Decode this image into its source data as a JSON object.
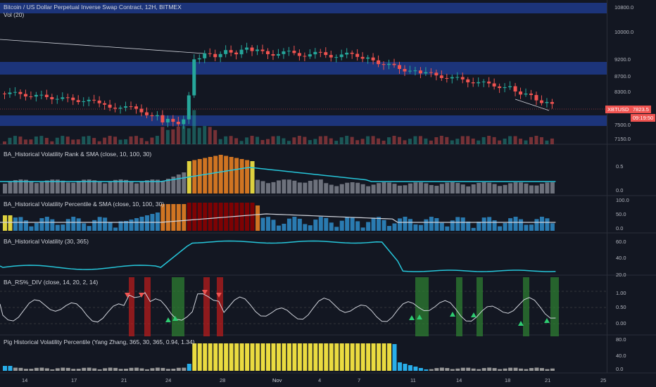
{
  "header": {
    "title": "Bitcoin / US Dollar Perpetual Inverse Swap Contract, 12H, BITMEX",
    "volume_label": "Vol (20)"
  },
  "price_axis": {
    "ticks": [
      "10800.0",
      "10000.0",
      "9200.0",
      "8700.0",
      "8300.0",
      "7500.0",
      "7150.0"
    ],
    "symbol_tag": "XBTUSD",
    "last_price": "7823.5",
    "countdown": "09:19:50"
  },
  "panels": [
    {
      "title": "BA_Historical Volatility Rank & SMA (close, 10, 100, 30)",
      "ticks": [
        "0.5",
        "0.0"
      ]
    },
    {
      "title": "BA_Historical Volatility Percentile & SMA (close, 10, 100, 30)",
      "ticks": [
        "100.0",
        "50.0",
        "0.0"
      ]
    },
    {
      "title": "BA_Historical Volatility (30, 365)",
      "ticks": [
        "60.0",
        "40.0",
        "20.0"
      ]
    },
    {
      "title": "BA_RS%_DIV (close, 14, 20, 2, 14)",
      "ticks": [
        "1.00",
        "0.50",
        "0.00"
      ]
    },
    {
      "title": "Pig Historical Volatility Percentile (Yang Zhang, 365, 30, 365, 0.94, 1.34)",
      "ticks": [
        "80.0",
        "40.0",
        "0.0"
      ]
    }
  ],
  "time_axis": {
    "labels": [
      "14",
      "17",
      "21",
      "24",
      "28",
      "Nov",
      "4",
      "7",
      "11",
      "14",
      "18",
      "21",
      "25"
    ]
  },
  "colors": {
    "background": "#131722",
    "up": "#26a69a",
    "down": "#ef5350",
    "zone": "#1e3a8a",
    "teal_line": "#26c6da",
    "yellow": "#f5e642",
    "orange": "#e67e22",
    "darkred": "#8b0000",
    "gray": "#787b86",
    "blue_bar": "#2e86c1",
    "green_band": "#2e7d32",
    "red_band": "#b71c1c"
  }
}
